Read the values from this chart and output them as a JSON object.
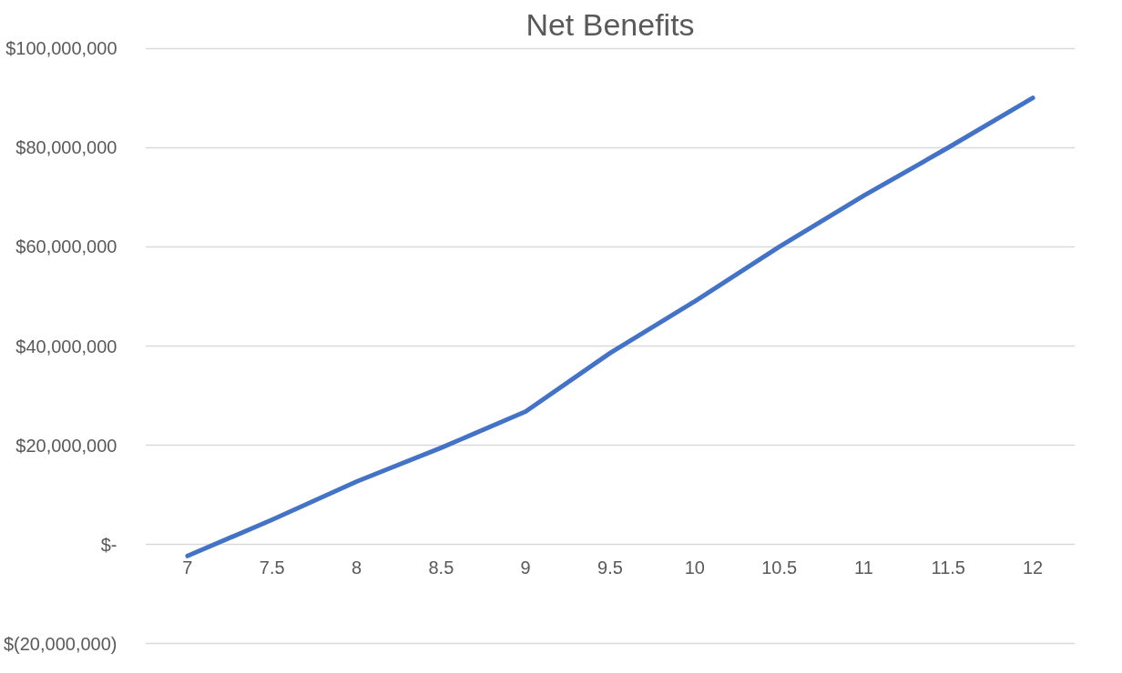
{
  "chart_data": {
    "type": "line",
    "title": "Net Benefits",
    "categories": [
      "7",
      "7.5",
      "8",
      "8.5",
      "9",
      "9.5",
      "10",
      "10.5",
      "11",
      "11.5",
      "12"
    ],
    "series": [
      {
        "color": "#4472c4",
        "values": [
          -2300000,
          5000000,
          12700000,
          19500000,
          26800000,
          38600000,
          49000000,
          60000000,
          70300000,
          80000000,
          90000000
        ]
      }
    ],
    "ylim": [
      -20000000,
      100000000
    ],
    "yticks": [
      {
        "value": -20000000,
        "label": "$(20,000,000)"
      },
      {
        "value": 0,
        "label": "$-"
      },
      {
        "value": 20000000,
        "label": "$20,000,000"
      },
      {
        "value": 40000000,
        "label": "$40,000,000"
      },
      {
        "value": 60000000,
        "label": "$60,000,000"
      },
      {
        "value": 80000000,
        "label": "$80,000,000"
      },
      {
        "value": 100000000,
        "label": "$100,000,000"
      }
    ],
    "grid": "y",
    "marker": "none",
    "line_style": "solid"
  }
}
